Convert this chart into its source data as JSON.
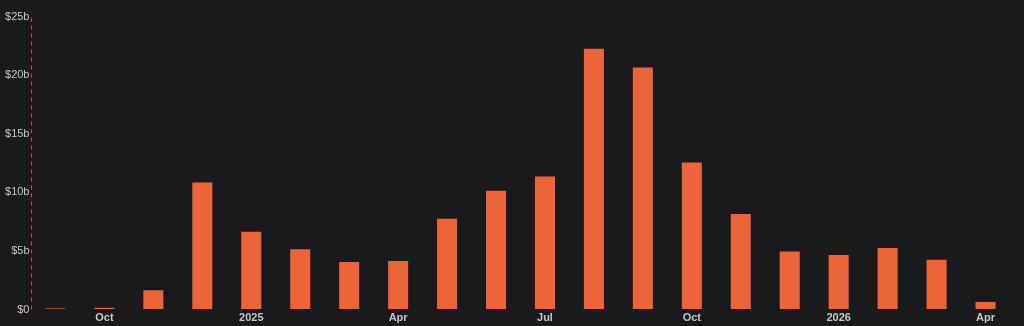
{
  "chart_data": {
    "type": "bar",
    "categories": [
      null,
      "Oct",
      null,
      null,
      "2025",
      null,
      null,
      "Apr",
      null,
      null,
      "Jul",
      null,
      null,
      "Oct",
      null,
      null,
      "2026",
      null,
      null,
      "Apr"
    ],
    "values": [
      0.05,
      0.1,
      1.6,
      10.8,
      6.6,
      5.1,
      4.0,
      4.1,
      7.7,
      10.1,
      11.3,
      22.2,
      20.6,
      12.5,
      8.1,
      4.9,
      4.6,
      5.2,
      4.2,
      0.6
    ],
    "color": "#ec6439",
    "ylim": [
      0,
      25
    ],
    "yticks": [
      {
        "value": 0,
        "label": "$0"
      },
      {
        "value": 5,
        "label": "$5b"
      },
      {
        "value": 10,
        "label": "$10b"
      },
      {
        "value": 15,
        "label": "$15b"
      },
      {
        "value": 20,
        "label": "$20b"
      },
      {
        "value": 25,
        "label": "$25b"
      }
    ],
    "grid": false
  }
}
